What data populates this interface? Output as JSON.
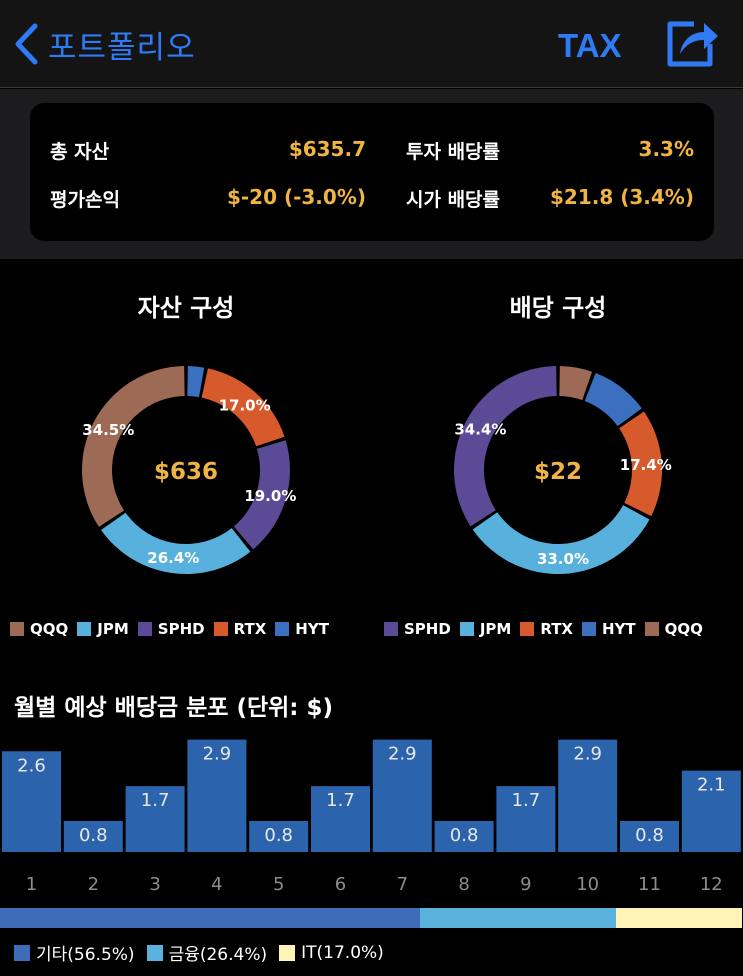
{
  "nav": {
    "back_label": "포트폴리오",
    "tax_label": "TAX"
  },
  "summary": {
    "total_assets_label": "총 자산",
    "total_assets_value": "$635.7",
    "invest_yield_label": "투자 배당률",
    "invest_yield_value": "3.3%",
    "pnl_label": "평가손익",
    "pnl_value": "$-20 (-3.0%)",
    "market_yield_label": "시가 배당률",
    "market_yield_value": "$21.8 (3.4%)"
  },
  "asset_chart": {
    "title": "자산 구성",
    "center_label": "$636",
    "slices": [
      {
        "name": "HYT",
        "value": 3.1,
        "color": "#3b6fbf",
        "label": ""
      },
      {
        "name": "RTX",
        "value": 17.0,
        "color": "#d75a2c",
        "label": "17.0%"
      },
      {
        "name": "SPHD",
        "value": 19.0,
        "color": "#5b4b96",
        "label": "19.0%"
      },
      {
        "name": "JPM",
        "value": 26.4,
        "color": "#57b1dc",
        "label": "26.4%"
      },
      {
        "name": "QQQ",
        "value": 34.5,
        "color": "#9c6a55",
        "label": "34.5%"
      }
    ],
    "legend": [
      {
        "name": "QQQ",
        "color": "#9c6a55"
      },
      {
        "name": "JPM",
        "color": "#57b1dc"
      },
      {
        "name": "SPHD",
        "color": "#5b4b96"
      },
      {
        "name": "RTX",
        "color": "#d75a2c"
      },
      {
        "name": "HYT",
        "color": "#3b6fbf"
      }
    ]
  },
  "dividend_chart": {
    "title": "배당 구성",
    "center_label": "$22",
    "slices": [
      {
        "name": "QQQ",
        "value": 5.6,
        "color": "#9c6a55",
        "label": ""
      },
      {
        "name": "HYT",
        "value": 9.6,
        "color": "#3b6fbf",
        "label": ""
      },
      {
        "name": "RTX",
        "value": 17.4,
        "color": "#d75a2c",
        "label": "17.4%"
      },
      {
        "name": "JPM",
        "value": 33.0,
        "color": "#57b1dc",
        "label": "33.0%"
      },
      {
        "name": "SPHD",
        "value": 34.4,
        "color": "#5b4b96",
        "label": "34.4%"
      }
    ],
    "legend": [
      {
        "name": "SPHD",
        "color": "#5b4b96"
      },
      {
        "name": "JPM",
        "color": "#57b1dc"
      },
      {
        "name": "RTX",
        "color": "#d75a2c"
      },
      {
        "name": "HYT",
        "color": "#3b6fbf"
      },
      {
        "name": "QQQ",
        "color": "#9c6a55"
      }
    ]
  },
  "monthly": {
    "title": "월별 예상 배당금 분포 (단위: $)",
    "bar_color": "#2b63ad"
  },
  "chart_data": {
    "type": "bar",
    "categories": [
      "1",
      "2",
      "3",
      "4",
      "5",
      "6",
      "7",
      "8",
      "9",
      "10",
      "11",
      "12"
    ],
    "values": [
      2.6,
      0.8,
      1.7,
      2.9,
      0.8,
      1.7,
      2.9,
      0.8,
      1.7,
      2.9,
      0.8,
      2.1
    ],
    "value_labels": [
      "2.6",
      "0.8",
      "1.7",
      "2.9",
      "0.8",
      "1.7",
      "2.9",
      "0.8",
      "1.7",
      "2.9",
      "0.8",
      "2.1"
    ],
    "ylim": [
      0,
      3.2
    ]
  },
  "sectors": [
    {
      "name": "기타",
      "label": "기타(56.5%)",
      "percent": 56.5,
      "color": "#3e6cb8"
    },
    {
      "name": "금융",
      "label": "금융(26.4%)",
      "percent": 26.4,
      "color": "#5ab2dc"
    },
    {
      "name": "IT",
      "label": "IT(17.0%)",
      "percent": 17.0,
      "color": "#fff3b8"
    }
  ]
}
